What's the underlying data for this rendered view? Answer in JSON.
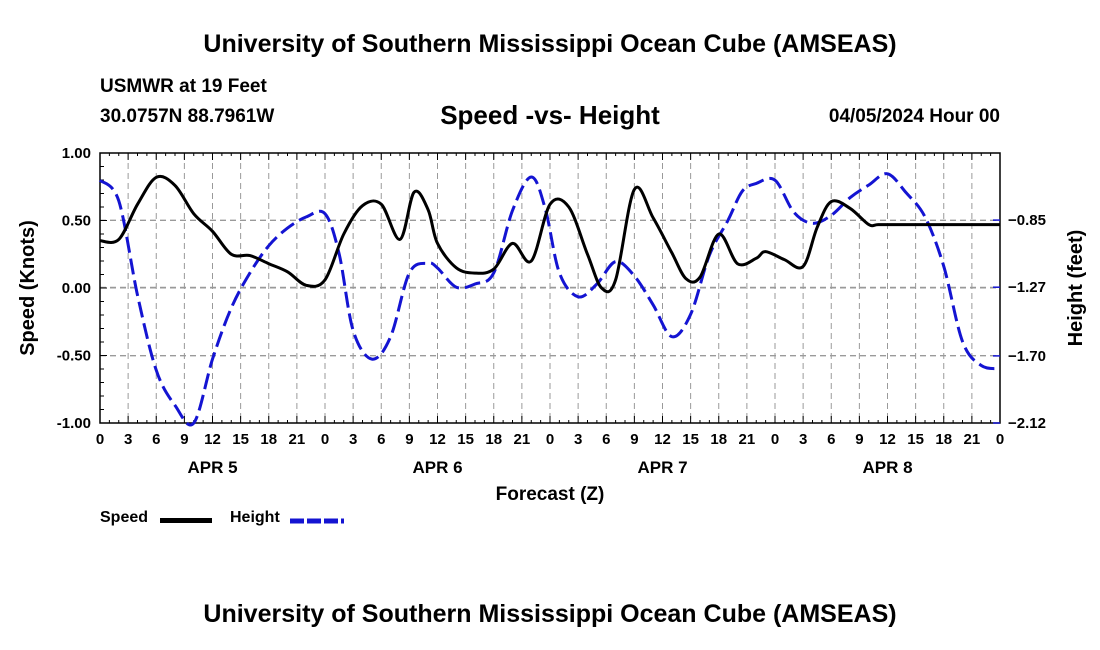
{
  "header": {
    "title": "University of Southern Mississippi Ocean Cube (AMSEAS)",
    "station": "USMWR at 19 Feet",
    "coords": "30.0757N  88.7961W",
    "subtitle": "Speed -vs- Height",
    "datetime": "04/05/2024 Hour 00"
  },
  "footer": {
    "title": "University of Southern Mississippi Ocean Cube (AMSEAS)"
  },
  "colors": {
    "speed": "#000000",
    "height": "#1414d2",
    "grid": "#9a9a9a"
  },
  "chart_data": {
    "type": "line",
    "title": "Speed -vs- Height",
    "xlabel": "Forecast (Z)",
    "ylabel": "Speed (Knots)",
    "y2label": "Height (feet)",
    "xlim": [
      0,
      96
    ],
    "ylim": [
      -1.0,
      1.0
    ],
    "y2lim": [
      -2.12,
      -0.43
    ],
    "yticks": [
      "1.00",
      "0.50",
      "0.00",
      "-0.50",
      "-1.00"
    ],
    "yticks_values": [
      1.0,
      0.5,
      0.0,
      -0.5,
      -1.0
    ],
    "y2ticks": [
      "-0.85",
      "-1.27",
      "-1.70",
      "-2.12"
    ],
    "y2ticks_values": [
      -0.85,
      -1.27,
      -1.7,
      -2.12
    ],
    "xtick_labels": [
      "0",
      "3",
      "6",
      "9",
      "12",
      "15",
      "18",
      "21",
      "0",
      "3",
      "6",
      "9",
      "12",
      "15",
      "18",
      "21",
      "0",
      "3",
      "6",
      "9",
      "12",
      "15",
      "18",
      "21",
      "0",
      "3",
      "6",
      "9",
      "12",
      "15",
      "18",
      "21",
      "0"
    ],
    "day_labels": [
      "APR 5",
      "APR 6",
      "APR 7",
      "APR 8"
    ],
    "day_label_hours": [
      12,
      36,
      60,
      84
    ],
    "legend": [
      "Speed",
      "Height"
    ],
    "series": [
      {
        "name": "Speed",
        "axis": "left",
        "style": "solid",
        "x": [
          0,
          2,
          4,
          6,
          8,
          10,
          12,
          14,
          16,
          18,
          20,
          22,
          24,
          26,
          28,
          30,
          32,
          33.5,
          35,
          36,
          38,
          40,
          42,
          44,
          46,
          48,
          50,
          52,
          53.5,
          55,
          57,
          59,
          61,
          62.5,
          64,
          66,
          68,
          70,
          71,
          73,
          75,
          76.5,
          78,
          80,
          82,
          83,
          85,
          86,
          88,
          89,
          90,
          92,
          94,
          96
        ],
        "values": [
          0.35,
          0.36,
          0.62,
          0.82,
          0.76,
          0.55,
          0.42,
          0.25,
          0.24,
          0.18,
          0.12,
          0.02,
          0.06,
          0.4,
          0.61,
          0.62,
          0.36,
          0.71,
          0.58,
          0.33,
          0.15,
          0.11,
          0.14,
          0.33,
          0.2,
          0.62,
          0.6,
          0.25,
          0.0,
          0.06,
          0.73,
          0.52,
          0.26,
          0.07,
          0.08,
          0.4,
          0.18,
          0.22,
          0.27,
          0.21,
          0.16,
          0.45,
          0.64,
          0.59,
          0.47,
          0.47,
          0.47,
          0.47,
          0.47,
          0.47,
          0.47,
          0.47,
          0.47,
          0.47
        ]
      },
      {
        "name": "Height",
        "axis": "right",
        "style": "dashed",
        "x": [
          0,
          2,
          4,
          6,
          8,
          10,
          12,
          14,
          16,
          18,
          20,
          22,
          24,
          25.5,
          27,
          29,
          31,
          33,
          35,
          36,
          38,
          40,
          42,
          44,
          46,
          47.5,
          49,
          51,
          53,
          55,
          57,
          59,
          61,
          63,
          65,
          67,
          68.5,
          70,
          72,
          74,
          76,
          78,
          80,
          82,
          84,
          86,
          88,
          90,
          92,
          94,
          96
        ],
        "values": [
          -0.6,
          -0.73,
          -1.32,
          -1.79,
          -2.01,
          -2.12,
          -1.72,
          -1.4,
          -1.18,
          -1.01,
          -0.9,
          -0.83,
          -0.81,
          -1.06,
          -1.54,
          -1.72,
          -1.58,
          -1.18,
          -1.12,
          -1.15,
          -1.27,
          -1.25,
          -1.18,
          -0.79,
          -0.58,
          -0.78,
          -1.18,
          -1.33,
          -1.25,
          -1.11,
          -1.2,
          -1.38,
          -1.58,
          -1.44,
          -1.07,
          -0.85,
          -0.67,
          -0.62,
          -0.6,
          -0.8,
          -0.87,
          -0.82,
          -0.71,
          -0.63,
          -0.56,
          -0.68,
          -0.83,
          -1.14,
          -1.61,
          -1.76,
          -1.78
        ]
      }
    ]
  }
}
